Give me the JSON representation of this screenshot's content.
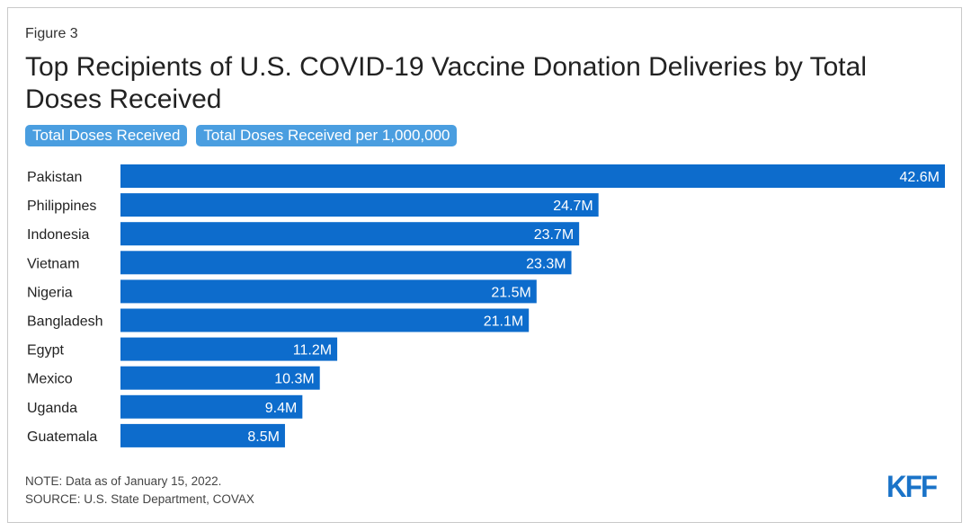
{
  "figure_label": "Figure 3",
  "title": "Top Recipients of U.S. COVID-19 Vaccine Donation Deliveries by Total Doses Received",
  "toggles": {
    "total": "Total Doses Received",
    "per_million": "Total Doses Received per 1,000,000"
  },
  "notes": {
    "note": "NOTE: Data as of January 15, 2022.",
    "source": "SOURCE: U.S. State Department, COVAX"
  },
  "logo_text": "KFF",
  "colors": {
    "bar": "#0d6ccc",
    "toggle": "#4a9ee0",
    "logo": "#1a73c8"
  },
  "chart_data": {
    "type": "bar",
    "orientation": "horizontal",
    "categories": [
      "Pakistan",
      "Philippines",
      "Indonesia",
      "Vietnam",
      "Nigeria",
      "Bangladesh",
      "Egypt",
      "Mexico",
      "Uganda",
      "Guatemala"
    ],
    "values": [
      42.6,
      24.7,
      23.7,
      23.3,
      21.5,
      21.1,
      11.2,
      10.3,
      9.4,
      8.5
    ],
    "value_labels": [
      "42.6M",
      "24.7M",
      "23.7M",
      "23.3M",
      "21.5M",
      "21.1M",
      "11.2M",
      "10.3M",
      "9.4M",
      "8.5M"
    ],
    "unit": "M",
    "xlim": [
      0,
      42.6
    ],
    "grid": false,
    "legend": "none"
  }
}
